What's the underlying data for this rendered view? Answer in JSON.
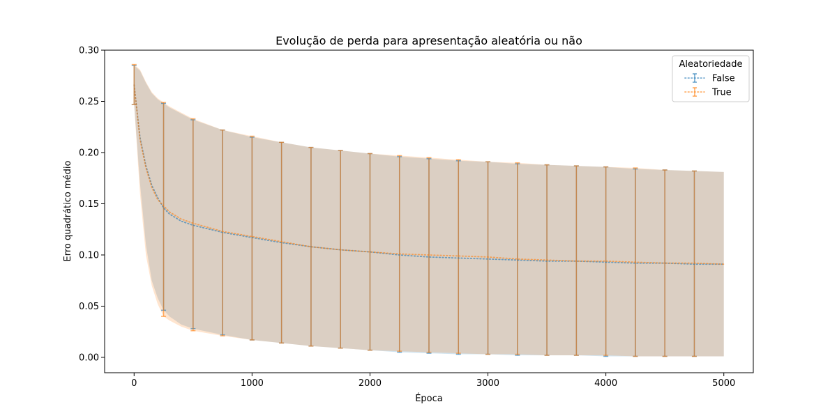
{
  "chart_data": {
    "type": "line",
    "title": "Evolução de perda para apresentação aleatória ou não",
    "xlabel": "Época",
    "ylabel": "Erro quadrático médio",
    "xlim": [
      -250,
      5250
    ],
    "ylim": [
      -0.015,
      0.3
    ],
    "xticks": [
      0,
      1000,
      2000,
      3000,
      4000,
      5000
    ],
    "yticks": [
      0.0,
      0.05,
      0.1,
      0.15,
      0.2,
      0.25,
      0.3
    ],
    "ytick_labels": [
      "0.00",
      "0.05",
      "0.10",
      "0.15",
      "0.20",
      "0.25",
      "0.30"
    ],
    "grid": false,
    "legend": {
      "title": "Aleatoriedade",
      "position": "top-right"
    },
    "x": [
      0,
      50,
      100,
      150,
      200,
      250,
      300,
      400,
      500,
      750,
      1000,
      1250,
      1500,
      1750,
      2000,
      2250,
      2500,
      2750,
      3000,
      3250,
      3500,
      3750,
      4000,
      4250,
      4500,
      4750,
      5000
    ],
    "errorbar_x": [
      0,
      250,
      500,
      750,
      1000,
      1250,
      1500,
      1750,
      2000,
      2250,
      2500,
      2750,
      3000,
      3250,
      3500,
      3750,
      4000,
      4250,
      4500,
      4750
    ],
    "series": [
      {
        "name": "False",
        "color": "#1f77b4",
        "mean": [
          0.266,
          0.215,
          0.187,
          0.168,
          0.156,
          0.146,
          0.14,
          0.133,
          0.129,
          0.122,
          0.117,
          0.112,
          0.108,
          0.105,
          0.103,
          0.1,
          0.098,
          0.097,
          0.096,
          0.095,
          0.094,
          0.094,
          0.093,
          0.092,
          0.092,
          0.091,
          0.091
        ],
        "lower": [
          0.247,
          0.17,
          0.11,
          0.075,
          0.058,
          0.046,
          0.04,
          0.032,
          0.028,
          0.022,
          0.017,
          0.014,
          0.011,
          0.009,
          0.007,
          0.005,
          0.004,
          0.003,
          0.003,
          0.002,
          0.002,
          0.002,
          0.001,
          0.001,
          0.001,
          0.001,
          0.001
        ],
        "upper": [
          0.285,
          0.28,
          0.268,
          0.258,
          0.252,
          0.248,
          0.244,
          0.238,
          0.232,
          0.222,
          0.215,
          0.21,
          0.205,
          0.202,
          0.199,
          0.196,
          0.194,
          0.192,
          0.191,
          0.189,
          0.188,
          0.187,
          0.186,
          0.184,
          0.183,
          0.182,
          0.181
        ]
      },
      {
        "name": "True",
        "color": "#ff7f0e",
        "mean": [
          0.266,
          0.213,
          0.185,
          0.166,
          0.154,
          0.148,
          0.142,
          0.135,
          0.131,
          0.123,
          0.118,
          0.113,
          0.108,
          0.105,
          0.103,
          0.101,
          0.1,
          0.099,
          0.098,
          0.096,
          0.095,
          0.094,
          0.094,
          0.093,
          0.092,
          0.092,
          0.091
        ],
        "lower": [
          0.247,
          0.16,
          0.1,
          0.07,
          0.052,
          0.04,
          0.036,
          0.03,
          0.026,
          0.021,
          0.017,
          0.014,
          0.011,
          0.009,
          0.007,
          0.006,
          0.005,
          0.004,
          0.003,
          0.003,
          0.002,
          0.002,
          0.002,
          0.001,
          0.001,
          0.001,
          0.001
        ],
        "upper": [
          0.286,
          0.281,
          0.269,
          0.259,
          0.253,
          0.249,
          0.245,
          0.239,
          0.233,
          0.222,
          0.216,
          0.21,
          0.205,
          0.202,
          0.199,
          0.197,
          0.195,
          0.193,
          0.191,
          0.19,
          0.188,
          0.187,
          0.186,
          0.185,
          0.183,
          0.182,
          0.181
        ]
      }
    ]
  }
}
